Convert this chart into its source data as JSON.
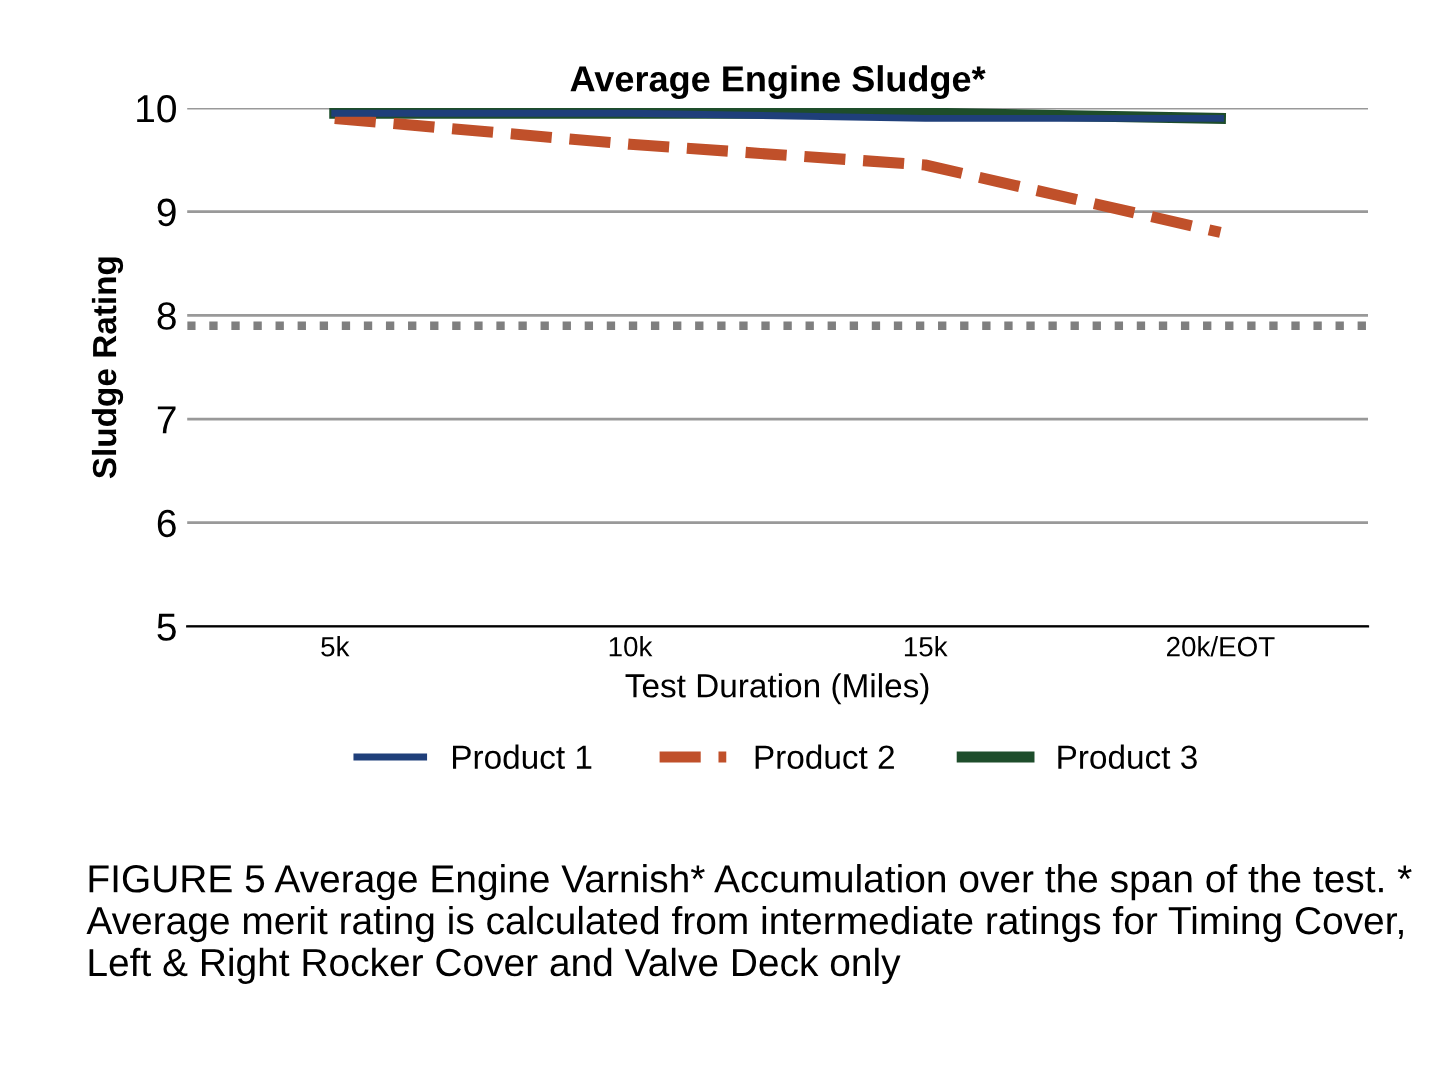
{
  "chart_data": {
    "type": "line",
    "title": "Average Engine Sludge*",
    "xlabel": "Test Duration (Miles)",
    "ylabel": "Sludge Rating",
    "categories": [
      "5k",
      "10k",
      "15k",
      "20k/EOT"
    ],
    "series": [
      {
        "name": "Product 1",
        "color": "#1f3f7a",
        "values": [
          9.95,
          9.95,
          9.9,
          9.9
        ],
        "line_style": "solid"
      },
      {
        "name": "Product 2",
        "color": "#c0502a",
        "values": [
          9.9,
          9.65,
          9.45,
          8.8
        ],
        "line_style": "dashed"
      },
      {
        "name": "Product 3",
        "color": "#1e4d2b",
        "values": [
          9.95,
          9.95,
          9.95,
          9.9
        ],
        "line_style": "solid"
      }
    ],
    "ref_lines": [
      {
        "axis": "y",
        "value": 7.9,
        "color": "#7f7f7f",
        "line_style": "dotted"
      }
    ],
    "ylim": [
      5,
      10
    ],
    "yticks": [
      5,
      6,
      7,
      8,
      9,
      10
    ],
    "grid": "y",
    "legend": "bottom",
    "marker": "none",
    "annotations": [
      "FIGURE 5 Average Engine Varnish* Accumulation over the span of the test. * Average merit rating is calculated from intermediate ratings for Timing Cover, Left & Right Rocker Cover and Valve Deck only"
    ]
  }
}
